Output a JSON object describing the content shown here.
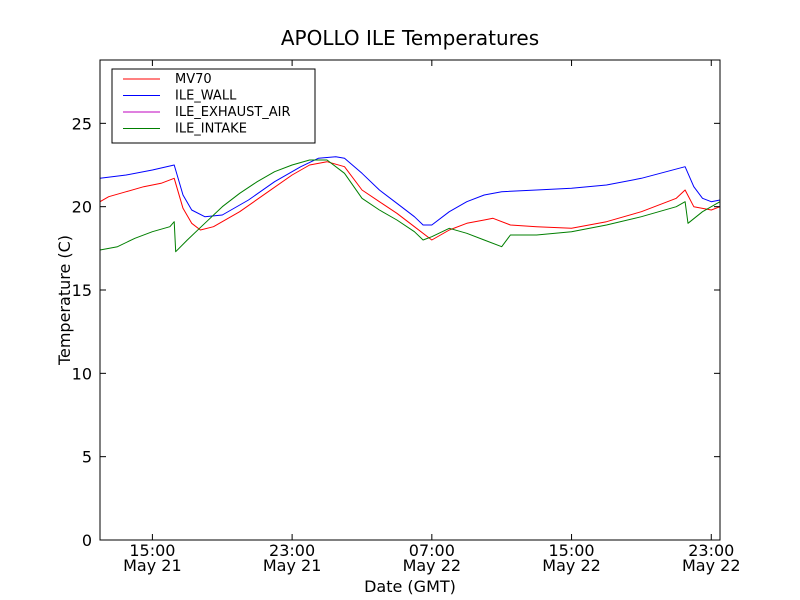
{
  "chart_data": {
    "type": "line",
    "title": "APOLLO ILE Temperatures",
    "xlabel": "Date (GMT)",
    "ylabel": "Temperature (C)",
    "ylim": [
      0,
      28.8
    ],
    "xlim": [
      "2013-05-21T12:00",
      "2013-05-22T23:30"
    ],
    "grid": false,
    "legend_placement": "upper-left",
    "x_ticks": [
      {
        "x": "2013-05-21T15:00",
        "time": "15:00",
        "date": "May 21"
      },
      {
        "x": "2013-05-21T23:00",
        "time": "23:00",
        "date": "May 21"
      },
      {
        "x": "2013-05-22T07:00",
        "time": "07:00",
        "date": "May 22"
      },
      {
        "x": "2013-05-22T15:00",
        "time": "15:00",
        "date": "May 22"
      },
      {
        "x": "2013-05-22T23:00",
        "time": "23:00",
        "date": "May 22"
      }
    ],
    "y_ticks": [
      0,
      5,
      10,
      15,
      20,
      25
    ],
    "series": [
      {
        "name": "MV70",
        "color": "#ff0000",
        "points": [
          [
            "2013-05-21T12:00",
            20.3
          ],
          [
            "2013-05-21T12:30",
            20.6
          ],
          [
            "2013-05-21T13:30",
            20.9
          ],
          [
            "2013-05-21T14:30",
            21.2
          ],
          [
            "2013-05-21T15:30",
            21.4
          ],
          [
            "2013-05-21T16:15",
            21.7
          ],
          [
            "2013-05-21T16:45",
            19.9
          ],
          [
            "2013-05-21T17:15",
            19.0
          ],
          [
            "2013-05-21T17:45",
            18.6
          ],
          [
            "2013-05-21T18:30",
            18.8
          ],
          [
            "2013-05-21T20:00",
            19.7
          ],
          [
            "2013-05-21T21:30",
            20.8
          ],
          [
            "2013-05-21T23:00",
            21.9
          ],
          [
            "2013-05-22T00:00",
            22.5
          ],
          [
            "2013-05-22T01:00",
            22.7
          ],
          [
            "2013-05-22T02:00",
            22.4
          ],
          [
            "2013-05-22T03:00",
            21.0
          ],
          [
            "2013-05-22T04:00",
            20.3
          ],
          [
            "2013-05-22T05:00",
            19.6
          ],
          [
            "2013-05-22T06:00",
            18.8
          ],
          [
            "2013-05-22T07:00",
            18.0
          ],
          [
            "2013-05-22T08:00",
            18.6
          ],
          [
            "2013-05-22T09:00",
            19.0
          ],
          [
            "2013-05-22T10:00",
            19.2
          ],
          [
            "2013-05-22T10:30",
            19.3
          ],
          [
            "2013-05-22T11:30",
            18.9
          ],
          [
            "2013-05-22T13:00",
            18.8
          ],
          [
            "2013-05-22T15:00",
            18.7
          ],
          [
            "2013-05-22T17:00",
            19.1
          ],
          [
            "2013-05-22T19:00",
            19.7
          ],
          [
            "2013-05-22T21:00",
            20.5
          ],
          [
            "2013-05-22T21:30",
            21.0
          ],
          [
            "2013-05-22T22:00",
            20.0
          ],
          [
            "2013-05-22T23:00",
            19.8
          ],
          [
            "2013-05-22T23:30",
            20.0
          ]
        ]
      },
      {
        "name": "ILE_WALL",
        "color": "#0000ff",
        "points": [
          [
            "2013-05-21T12:00",
            21.7
          ],
          [
            "2013-05-21T13:30",
            21.9
          ],
          [
            "2013-05-21T15:00",
            22.2
          ],
          [
            "2013-05-21T16:15",
            22.5
          ],
          [
            "2013-05-21T16:45",
            20.7
          ],
          [
            "2013-05-21T17:15",
            19.8
          ],
          [
            "2013-05-21T18:00",
            19.4
          ],
          [
            "2013-05-21T19:00",
            19.5
          ],
          [
            "2013-05-21T20:30",
            20.4
          ],
          [
            "2013-05-21T22:00",
            21.5
          ],
          [
            "2013-05-21T23:30",
            22.4
          ],
          [
            "2013-05-22T00:30",
            22.9
          ],
          [
            "2013-05-22T01:30",
            23.0
          ],
          [
            "2013-05-22T02:00",
            22.9
          ],
          [
            "2013-05-22T03:00",
            22.0
          ],
          [
            "2013-05-22T04:00",
            21.0
          ],
          [
            "2013-05-22T05:00",
            20.2
          ],
          [
            "2013-05-22T06:00",
            19.4
          ],
          [
            "2013-05-22T06:30",
            18.9
          ],
          [
            "2013-05-22T07:00",
            18.9
          ],
          [
            "2013-05-22T08:00",
            19.7
          ],
          [
            "2013-05-22T09:00",
            20.3
          ],
          [
            "2013-05-22T10:00",
            20.7
          ],
          [
            "2013-05-22T11:00",
            20.9
          ],
          [
            "2013-05-22T13:00",
            21.0
          ],
          [
            "2013-05-22T15:00",
            21.1
          ],
          [
            "2013-05-22T17:00",
            21.3
          ],
          [
            "2013-05-22T19:00",
            21.7
          ],
          [
            "2013-05-22T21:30",
            22.4
          ],
          [
            "2013-05-22T22:00",
            21.2
          ],
          [
            "2013-05-22T22:30",
            20.5
          ],
          [
            "2013-05-22T23:00",
            20.3
          ],
          [
            "2013-05-22T23:30",
            20.4
          ]
        ]
      },
      {
        "name": "ILE_EXHAUST_AIR",
        "color": "#bf00bf",
        "points": []
      },
      {
        "name": "ILE_INTAKE",
        "color": "#007f00",
        "points": [
          [
            "2013-05-21T12:00",
            17.4
          ],
          [
            "2013-05-21T13:00",
            17.6
          ],
          [
            "2013-05-21T14:00",
            18.1
          ],
          [
            "2013-05-21T15:00",
            18.5
          ],
          [
            "2013-05-21T16:00",
            18.8
          ],
          [
            "2013-05-21T16:15",
            19.1
          ],
          [
            "2013-05-21T16:20",
            17.3
          ],
          [
            "2013-05-21T17:00",
            18.0
          ],
          [
            "2013-05-21T18:00",
            19.0
          ],
          [
            "2013-05-21T19:00",
            20.0
          ],
          [
            "2013-05-21T20:00",
            20.8
          ],
          [
            "2013-05-21T21:00",
            21.5
          ],
          [
            "2013-05-21T22:00",
            22.1
          ],
          [
            "2013-05-21T23:00",
            22.5
          ],
          [
            "2013-05-22T00:00",
            22.8
          ],
          [
            "2013-05-22T01:00",
            22.8
          ],
          [
            "2013-05-22T02:00",
            22.0
          ],
          [
            "2013-05-22T03:00",
            20.5
          ],
          [
            "2013-05-22T04:00",
            19.8
          ],
          [
            "2013-05-22T05:00",
            19.2
          ],
          [
            "2013-05-22T06:00",
            18.5
          ],
          [
            "2013-05-22T06:30",
            18.0
          ],
          [
            "2013-05-22T07:00",
            18.2
          ],
          [
            "2013-05-22T08:00",
            18.7
          ],
          [
            "2013-05-22T09:00",
            18.4
          ],
          [
            "2013-05-22T10:00",
            18.0
          ],
          [
            "2013-05-22T11:00",
            17.6
          ],
          [
            "2013-05-22T11:30",
            18.3
          ],
          [
            "2013-05-22T13:00",
            18.3
          ],
          [
            "2013-05-22T15:00",
            18.5
          ],
          [
            "2013-05-22T17:00",
            18.9
          ],
          [
            "2013-05-22T19:00",
            19.4
          ],
          [
            "2013-05-22T21:00",
            20.0
          ],
          [
            "2013-05-22T21:30",
            20.3
          ],
          [
            "2013-05-22T21:40",
            19.0
          ],
          [
            "2013-05-22T22:30",
            19.7
          ],
          [
            "2013-05-22T23:30",
            20.3
          ]
        ]
      }
    ]
  }
}
